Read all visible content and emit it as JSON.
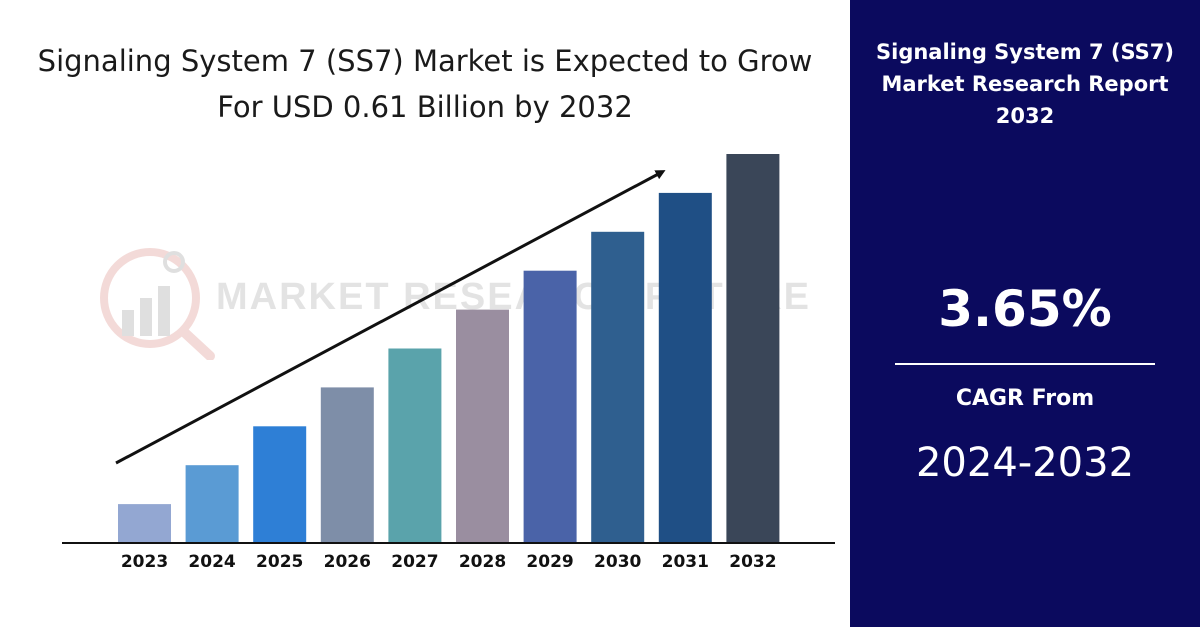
{
  "chart_data": {
    "type": "bar",
    "title": "Signaling System 7 (SS7) Market is Expected to Grow For USD 0.61 Billion by 2032",
    "categories": [
      "2023",
      "2024",
      "2025",
      "2026",
      "2027",
      "2028",
      "2029",
      "2030",
      "2031",
      "2032"
    ],
    "values": [
      1,
      2,
      3,
      4,
      5,
      6,
      7,
      8,
      9,
      10
    ],
    "ylim": [
      0,
      10
    ],
    "grid": false,
    "bar_colors": [
      "#93a7d2",
      "#5a9bd4",
      "#2e7fd6",
      "#7e8ea8",
      "#5aa3ab",
      "#9a8ea0",
      "#4a63a8",
      "#2f5f8f",
      "#1f4f85",
      "#3a4658"
    ],
    "trend_arrow": true
  },
  "watermark": {
    "text": "MARKET RESEARCH FUTURE",
    "logo_icon": "magnifier-chart-icon"
  },
  "report": {
    "title_lines": [
      "Signaling System 7 (SS7)",
      "Market Research Report",
      "2032"
    ],
    "cagr_value": "3.65%",
    "cagr_label": "CAGR From",
    "cagr_period": "2024-2032"
  },
  "colors": {
    "panel_bg": "#0b0a5e",
    "panel_text": "#ffffff",
    "axis": "#111111"
  }
}
